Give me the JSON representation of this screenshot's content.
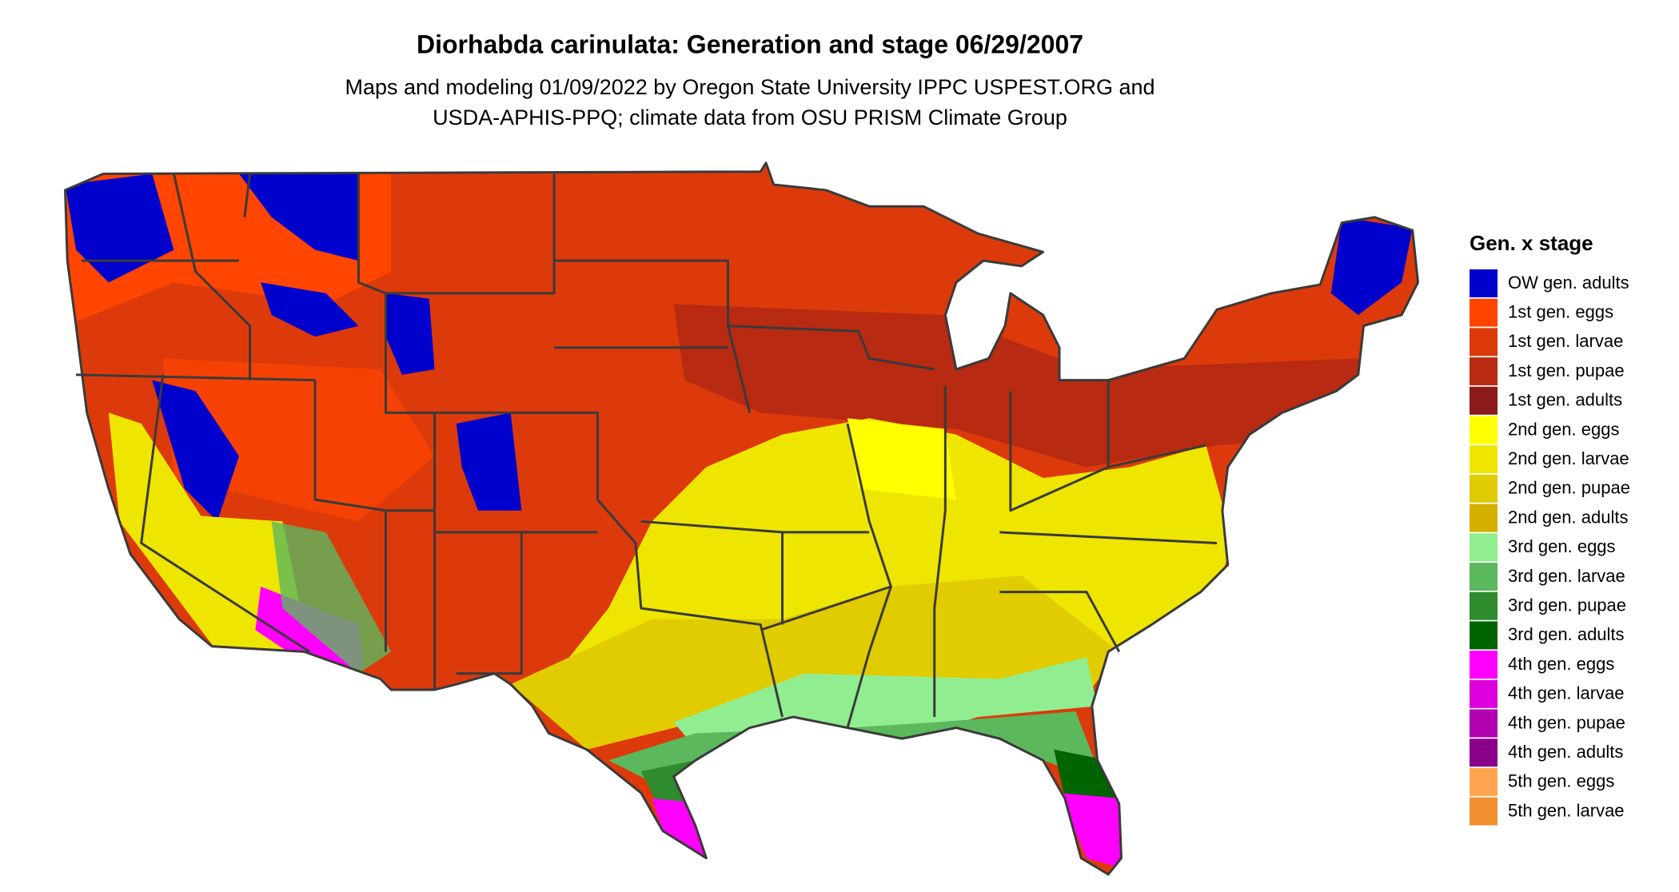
{
  "title": "Diorhabda carinulata: Generation and stage 06/29/2007",
  "subtitle": [
    "Maps and modeling 01/09/2022 by Oregon State University IPPC USPEST.ORG and",
    "USDA-APHIS-PPQ; climate data from OSU PRISM Climate Group"
  ],
  "legend": {
    "title": "Gen. x stage",
    "items": [
      {
        "label": "OW gen. adults",
        "color": "#0000cd"
      },
      {
        "label": "1st gen. eggs",
        "color": "#ff4500"
      },
      {
        "label": "1st gen. larvae",
        "color": "#dd3a0b"
      },
      {
        "label": "1st gen. pupae",
        "color": "#b82a12"
      },
      {
        "label": "1st gen. adults",
        "color": "#8b1a1a"
      },
      {
        "label": "2nd gen. eggs",
        "color": "#ffff00"
      },
      {
        "label": "2nd gen. larvae",
        "color": "#eee600"
      },
      {
        "label": "2nd gen. pupae",
        "color": "#e0cc00"
      },
      {
        "label": "2nd gen. adults",
        "color": "#d4b000"
      },
      {
        "label": "3rd gen. eggs",
        "color": "#90ee90"
      },
      {
        "label": "3rd gen. larvae",
        "color": "#5cb85c"
      },
      {
        "label": "3rd gen. pupae",
        "color": "#2e8b2e"
      },
      {
        "label": "3rd gen. adults",
        "color": "#006400"
      },
      {
        "label": "4th gen. eggs",
        "color": "#ff00ff"
      },
      {
        "label": "4th gen. larvae",
        "color": "#dd00dd"
      },
      {
        "label": "4th gen. pupae",
        "color": "#b000b0"
      },
      {
        "label": "4th gen. adults",
        "color": "#8b008b"
      },
      {
        "label": "5th gen. eggs",
        "color": "#ffa54f"
      },
      {
        "label": "5th gen. larvae",
        "color": "#f0902f"
      }
    ]
  }
}
